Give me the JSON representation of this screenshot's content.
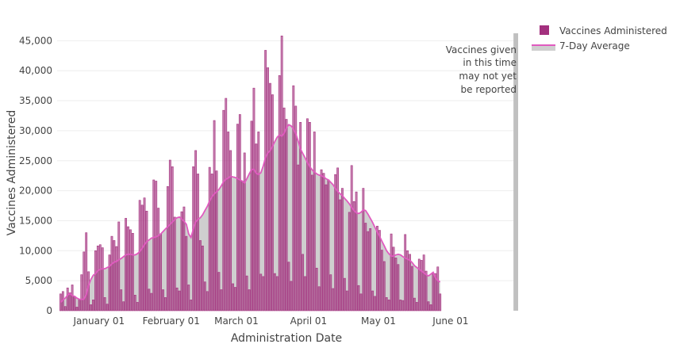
{
  "chart_data": {
    "type": "bar",
    "title": "",
    "xlabel": "Administration Date",
    "ylabel": "Vaccines Administered",
    "ylim": [
      0,
      46500
    ],
    "yticks": [
      0,
      5000,
      10000,
      15000,
      20000,
      25000,
      30000,
      35000,
      40000,
      45000
    ],
    "ytick_labels": [
      "0",
      "5,000",
      "10,000",
      "15,000",
      "20,000",
      "25,000",
      "30,000",
      "35,000",
      "40,000",
      "45,000"
    ],
    "x_start": "2020-12-14",
    "x_end": "2021-06-30",
    "xticks": [
      "2021-01-01",
      "2021-02-01",
      "2021-03-01",
      "2021-04-01",
      "2021-05-01",
      "2021-06-01"
    ],
    "xtick_labels": [
      "January 01",
      "February 01",
      "March 01",
      "April 01",
      "May 01",
      "June 01"
    ],
    "grid": true,
    "legend_position": "top-right",
    "series": [
      {
        "name": "Vaccines Administered",
        "kind": "bar",
        "color": "#a3307e",
        "start_date": "2020-12-15",
        "values": [
          2800,
          3200,
          700,
          3800,
          3000,
          4300,
          2400,
          600,
          1800,
          6000,
          9800,
          13000,
          6500,
          1000,
          1800,
          10000,
          10800,
          11000,
          10500,
          2200,
          1100,
          9300,
          12400,
          11700,
          10700,
          14800,
          3500,
          1500,
          15400,
          14000,
          13500,
          12900,
          2600,
          1400,
          18400,
          17600,
          18800,
          16600,
          3600,
          2900,
          21800,
          21600,
          17100,
          12800,
          3500,
          2200,
          20700,
          25100,
          24000,
          15600,
          3800,
          3300,
          16500,
          17300,
          12400,
          4300,
          1800,
          24000,
          26700,
          22800,
          11700,
          10800,
          4800,
          3200,
          23900,
          22800,
          31700,
          23300,
          6400,
          3500,
          33400,
          35400,
          29800,
          26700,
          4500,
          3900,
          31100,
          32700,
          21600,
          26300,
          5800,
          3500,
          31600,
          37100,
          27800,
          29800,
          6100,
          5700,
          43400,
          40500,
          37900,
          36000,
          6200,
          5700,
          39200,
          45800,
          33800,
          31900,
          8100,
          4900,
          37500,
          34100,
          24300,
          31400,
          9400,
          5700,
          32000,
          31400,
          22600,
          29800,
          7100,
          4000,
          23500,
          22900,
          21000,
          21800,
          6000,
          3700,
          22700,
          23800,
          18500,
          20400,
          5400,
          3300,
          16400,
          24200,
          18200,
          19800,
          4200,
          2800,
          20400,
          14600,
          13200,
          13700,
          3300,
          2400,
          14100,
          13400,
          10100,
          8200,
          2200,
          1800,
          12800,
          10600,
          8800,
          7700,
          1800,
          1700,
          12700,
          10000,
          9400,
          7400,
          2100,
          1400,
          8600,
          8400,
          9300,
          6600,
          1500,
          1000,
          6100,
          6200,
          7300,
          2800
        ],
        "bar_width_days": 0.75
      },
      {
        "name": "7-Day Average",
        "kind": "line",
        "color": "#e05bbf",
        "fill": "#cfcfcf",
        "start_date": "2020-12-15",
        "values": [
          1400,
          1800,
          2100,
          2600,
          2900,
          2500,
          2400,
          2100,
          1900,
          1900,
          1900,
          2600,
          4200,
          5200,
          5900,
          6200,
          6700,
          6900,
          7000,
          7000,
          7200,
          7400,
          7800,
          8100,
          8200,
          8500,
          8700,
          9000,
          9300,
          9400,
          9400,
          9300,
          9300,
          9500,
          9900,
          10400,
          11000,
          11500,
          11800,
          12100,
          12200,
          12300,
          12500,
          12800,
          13200,
          13600,
          14000,
          14400,
          14800,
          15200,
          15500,
          15600,
          15300,
          14900,
          14400,
          12800,
          12200,
          13600,
          14800,
          15200,
          15500,
          16000,
          16700,
          17400,
          18300,
          19000,
          19500,
          19800,
          20200,
          20800,
          21500,
          21900,
          22100,
          22400,
          22300,
          22200,
          22000,
          21800,
          21600,
          21300,
          22000,
          22800,
          23500,
          23600,
          22900,
          22700,
          23000,
          24100,
          25500,
          26300,
          26700,
          27400,
          28200,
          28900,
          29300,
          29100,
          29600,
          30500,
          31000,
          30800,
          30300,
          29500,
          28300,
          27000,
          26200,
          25500,
          24700,
          24000,
          23500,
          23100,
          22800,
          22600,
          22500,
          22300,
          22000,
          21800,
          21400,
          21000,
          20400,
          19900,
          19500,
          19200,
          18700,
          18300,
          17800,
          17200,
          16700,
          16300,
          16200,
          16400,
          16800,
          16700,
          16100,
          15400,
          14700,
          13900,
          13100,
          12400,
          11600,
          10800,
          10000,
          9500,
          9100,
          9100,
          9300,
          9400,
          9300,
          9000,
          8800,
          8600,
          8400,
          8000,
          7500,
          7200,
          6900,
          6600,
          6300,
          6000,
          5800,
          6100,
          6400,
          5500,
          5000,
          4800
        ]
      }
    ],
    "shaded_region": {
      "start": "2021-06-28",
      "end": "2021-06-30",
      "color": "#c0c0c0"
    },
    "annotation": [
      "Vaccines given",
      "in this time",
      "may not yet",
      "be reported"
    ]
  }
}
